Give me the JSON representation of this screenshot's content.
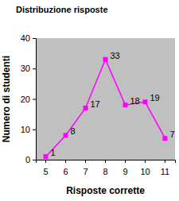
{
  "chart_data": {
    "type": "line",
    "title": "Distribuzione risposte",
    "x_label": "Risposte corrette",
    "y_label": "Numero di studenti",
    "categories": [
      "5",
      "6",
      "7",
      "8",
      "9",
      "10",
      "11"
    ],
    "values": [
      1,
      8,
      17,
      33,
      18,
      19,
      7
    ],
    "color": "#ff00ff",
    "marker": "square",
    "line_style": "solid",
    "ylim": [
      0,
      40
    ],
    "yticks": [
      0,
      10,
      20,
      30,
      40
    ],
    "grid": false,
    "data_labels": true
  }
}
